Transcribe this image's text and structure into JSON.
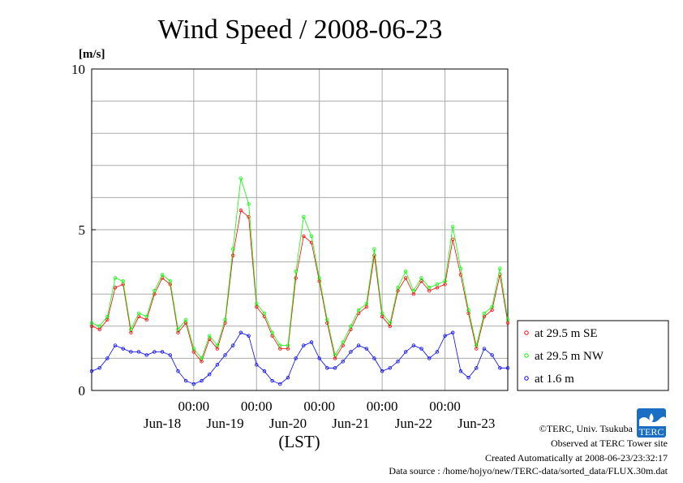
{
  "chart_data": {
    "type": "line",
    "title": "Wind Speed / 2008-06-23",
    "ylabel": "[m/s]",
    "xlabel": "(LST)",
    "ylim": [
      0,
      10
    ],
    "yticks": [
      0,
      5,
      10
    ],
    "xlim": [
      "2008-06-17T09:00",
      "2008-06-23T24:00"
    ],
    "xticks": [
      {
        "time": "2008-06-19T00:00",
        "label": "00:00"
      },
      {
        "time": "2008-06-20T00:00",
        "label": "00:00"
      },
      {
        "time": "2008-06-21T00:00",
        "label": "00:00"
      },
      {
        "time": "2008-06-22T00:00",
        "label": "00:00"
      },
      {
        "time": "2008-06-23T00:00",
        "label": "00:00"
      }
    ],
    "date_labels": [
      {
        "time": "2008-06-18T12:00",
        "label": "Jun-18"
      },
      {
        "time": "2008-06-19T12:00",
        "label": "Jun-19"
      },
      {
        "time": "2008-06-20T12:00",
        "label": "Jun-20"
      },
      {
        "time": "2008-06-21T12:00",
        "label": "Jun-21"
      },
      {
        "time": "2008-06-22T12:00",
        "label": "Jun-22"
      },
      {
        "time": "2008-06-23T12:00",
        "label": "Jun-23"
      }
    ],
    "grid": true,
    "legend_position": "right",
    "series": [
      {
        "name": "at 29.5 m SE",
        "color": "#ff0000",
        "x": [
          "2008-06-17T09:00",
          "2008-06-17T12:00",
          "2008-06-17T15:00",
          "2008-06-17T18:00",
          "2008-06-17T21:00",
          "2008-06-18T00:00",
          "2008-06-18T03:00",
          "2008-06-18T06:00",
          "2008-06-18T09:00",
          "2008-06-18T12:00",
          "2008-06-18T15:00",
          "2008-06-18T18:00",
          "2008-06-18T21:00",
          "2008-06-19T00:00",
          "2008-06-19T03:00",
          "2008-06-19T06:00",
          "2008-06-19T09:00",
          "2008-06-19T12:00",
          "2008-06-19T15:00",
          "2008-06-19T18:00",
          "2008-06-19T21:00",
          "2008-06-20T00:00",
          "2008-06-20T03:00",
          "2008-06-20T06:00",
          "2008-06-20T09:00",
          "2008-06-20T12:00",
          "2008-06-20T15:00",
          "2008-06-20T18:00",
          "2008-06-20T21:00",
          "2008-06-21T00:00",
          "2008-06-21T03:00",
          "2008-06-21T06:00",
          "2008-06-21T09:00",
          "2008-06-21T12:00",
          "2008-06-21T15:00",
          "2008-06-21T18:00",
          "2008-06-21T21:00",
          "2008-06-22T00:00",
          "2008-06-22T03:00",
          "2008-06-22T06:00",
          "2008-06-22T09:00",
          "2008-06-22T12:00",
          "2008-06-22T15:00",
          "2008-06-22T18:00",
          "2008-06-22T21:00",
          "2008-06-23T00:00",
          "2008-06-23T03:00",
          "2008-06-23T06:00",
          "2008-06-23T09:00",
          "2008-06-23T12:00",
          "2008-06-23T15:00",
          "2008-06-23T18:00",
          "2008-06-23T21:00",
          "2008-06-23T24:00"
        ],
        "values": [
          2.0,
          1.9,
          2.2,
          3.2,
          3.3,
          1.8,
          2.3,
          2.2,
          3.0,
          3.5,
          3.3,
          1.8,
          2.1,
          1.2,
          0.9,
          1.6,
          1.3,
          2.1,
          4.2,
          5.6,
          5.4,
          2.6,
          2.3,
          1.7,
          1.3,
          1.3,
          3.5,
          4.8,
          4.6,
          3.4,
          2.1,
          1.0,
          1.4,
          1.9,
          2.4,
          2.6,
          4.2,
          2.3,
          2.0,
          3.1,
          3.5,
          3.0,
          3.4,
          3.1,
          3.2,
          3.3,
          4.7,
          3.6,
          2.4,
          1.3,
          2.3,
          2.5,
          3.6,
          2.1
        ]
      },
      {
        "name": "at 29.5 m NW",
        "color": "#00ff00",
        "x": [
          "2008-06-17T09:00",
          "2008-06-17T12:00",
          "2008-06-17T15:00",
          "2008-06-17T18:00",
          "2008-06-17T21:00",
          "2008-06-18T00:00",
          "2008-06-18T03:00",
          "2008-06-18T06:00",
          "2008-06-18T09:00",
          "2008-06-18T12:00",
          "2008-06-18T15:00",
          "2008-06-18T18:00",
          "2008-06-18T21:00",
          "2008-06-19T00:00",
          "2008-06-19T03:00",
          "2008-06-19T06:00",
          "2008-06-19T09:00",
          "2008-06-19T12:00",
          "2008-06-19T15:00",
          "2008-06-19T18:00",
          "2008-06-19T21:00",
          "2008-06-20T00:00",
          "2008-06-20T03:00",
          "2008-06-20T06:00",
          "2008-06-20T09:00",
          "2008-06-20T12:00",
          "2008-06-20T15:00",
          "2008-06-20T18:00",
          "2008-06-20T21:00",
          "2008-06-21T00:00",
          "2008-06-21T03:00",
          "2008-06-21T06:00",
          "2008-06-21T09:00",
          "2008-06-21T12:00",
          "2008-06-21T15:00",
          "2008-06-21T18:00",
          "2008-06-21T21:00",
          "2008-06-22T00:00",
          "2008-06-22T03:00",
          "2008-06-22T06:00",
          "2008-06-22T09:00",
          "2008-06-22T12:00",
          "2008-06-22T15:00",
          "2008-06-22T18:00",
          "2008-06-22T21:00",
          "2008-06-23T00:00",
          "2008-06-23T03:00",
          "2008-06-23T06:00",
          "2008-06-23T09:00",
          "2008-06-23T12:00",
          "2008-06-23T15:00",
          "2008-06-23T18:00",
          "2008-06-23T21:00",
          "2008-06-23T24:00"
        ],
        "values": [
          2.1,
          2.0,
          2.3,
          3.5,
          3.4,
          1.9,
          2.4,
          2.3,
          3.1,
          3.6,
          3.4,
          1.9,
          2.2,
          1.3,
          1.0,
          1.7,
          1.4,
          2.2,
          4.4,
          6.6,
          5.8,
          2.7,
          2.4,
          1.8,
          1.4,
          1.4,
          3.7,
          5.4,
          4.8,
          3.5,
          2.2,
          1.1,
          1.5,
          2.0,
          2.5,
          2.7,
          4.4,
          2.4,
          2.1,
          3.2,
          3.7,
          3.1,
          3.5,
          3.2,
          3.3,
          3.4,
          5.1,
          3.8,
          2.5,
          1.4,
          2.4,
          2.6,
          3.8,
          2.2
        ]
      },
      {
        "name": "at 1.6 m",
        "color": "#0000ff",
        "x": [
          "2008-06-17T09:00",
          "2008-06-17T12:00",
          "2008-06-17T15:00",
          "2008-06-17T18:00",
          "2008-06-17T21:00",
          "2008-06-18T00:00",
          "2008-06-18T03:00",
          "2008-06-18T06:00",
          "2008-06-18T09:00",
          "2008-06-18T12:00",
          "2008-06-18T15:00",
          "2008-06-18T18:00",
          "2008-06-18T21:00",
          "2008-06-19T00:00",
          "2008-06-19T03:00",
          "2008-06-19T06:00",
          "2008-06-19T09:00",
          "2008-06-19T12:00",
          "2008-06-19T15:00",
          "2008-06-19T18:00",
          "2008-06-19T21:00",
          "2008-06-20T00:00",
          "2008-06-20T03:00",
          "2008-06-20T06:00",
          "2008-06-20T09:00",
          "2008-06-20T12:00",
          "2008-06-20T15:00",
          "2008-06-20T18:00",
          "2008-06-20T21:00",
          "2008-06-21T00:00",
          "2008-06-21T03:00",
          "2008-06-21T06:00",
          "2008-06-21T09:00",
          "2008-06-21T12:00",
          "2008-06-21T15:00",
          "2008-06-21T18:00",
          "2008-06-21T21:00",
          "2008-06-22T00:00",
          "2008-06-22T03:00",
          "2008-06-22T06:00",
          "2008-06-22T09:00",
          "2008-06-22T12:00",
          "2008-06-22T15:00",
          "2008-06-22T18:00",
          "2008-06-22T21:00",
          "2008-06-23T00:00",
          "2008-06-23T03:00",
          "2008-06-23T06:00",
          "2008-06-23T09:00",
          "2008-06-23T12:00",
          "2008-06-23T15:00",
          "2008-06-23T18:00",
          "2008-06-23T21:00",
          "2008-06-23T24:00"
        ],
        "values": [
          0.6,
          0.7,
          1.0,
          1.4,
          1.3,
          1.2,
          1.2,
          1.1,
          1.2,
          1.2,
          1.1,
          0.6,
          0.3,
          0.2,
          0.3,
          0.5,
          0.8,
          1.1,
          1.4,
          1.8,
          1.7,
          0.8,
          0.6,
          0.3,
          0.2,
          0.4,
          1.0,
          1.4,
          1.5,
          1.0,
          0.7,
          0.7,
          0.9,
          1.2,
          1.4,
          1.3,
          1.0,
          0.6,
          0.7,
          0.9,
          1.2,
          1.4,
          1.3,
          1.0,
          1.2,
          1.7,
          1.8,
          0.6,
          0.4,
          0.7,
          1.3,
          1.1,
          0.7,
          0.7
        ]
      }
    ]
  },
  "credits": {
    "copyright": "©TERC, Univ. Tsukuba",
    "observed": "Observed at TERC Tower site",
    "created": "Created Automatically at 2008-06-23/23:32:17",
    "source": "Data source : /home/hojyo/new/TERC-data/sorted_data/FLUX.30m.dat",
    "logo_text": "TERC"
  }
}
